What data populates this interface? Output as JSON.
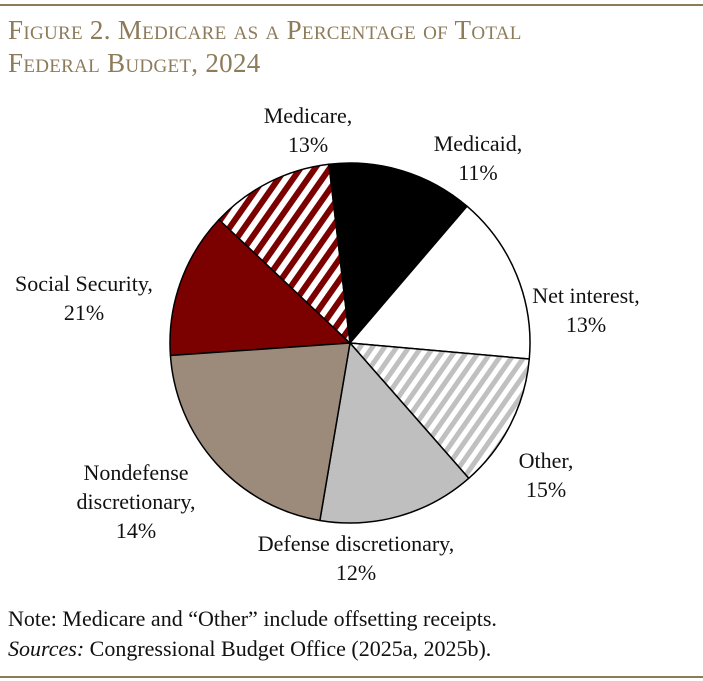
{
  "figure": {
    "title_line1": "Figure 2. Medicare as a Percentage of Total",
    "title_line2": "Federal Budget, 2024"
  },
  "chart_data": {
    "type": "pie",
    "title": "Medicare as a Percentage of Total Federal Budget, 2024",
    "slices": [
      {
        "name": "Medicare",
        "label_lines": [
          "Medicare,",
          "13%"
        ],
        "value": 13,
        "fill": "#7b0000",
        "pattern": "solid"
      },
      {
        "name": "Medicaid",
        "label_lines": [
          "Medicaid,",
          "11%"
        ],
        "value": 11,
        "fill": "#7b0000",
        "pattern": "stripes"
      },
      {
        "name": "Net interest",
        "label_lines": [
          "Net interest,",
          "13%"
        ],
        "value": 13,
        "fill": "#000000",
        "pattern": "solid"
      },
      {
        "name": "Other",
        "label_lines": [
          "Other,",
          "15%"
        ],
        "value": 15,
        "fill": "#ffffff",
        "pattern": "solid"
      },
      {
        "name": "Defense discretionary",
        "label_lines": [
          "Defense discretionary,",
          "12%"
        ],
        "value": 12,
        "fill": "#c0c0c0",
        "pattern": "stripes"
      },
      {
        "name": "Nondefense discretionary",
        "label_lines": [
          "Nondefense",
          "discretionary,",
          "14%"
        ],
        "value": 14,
        "fill": "#bfbfbf",
        "pattern": "solid"
      },
      {
        "name": "Social Security",
        "label_lines": [
          "Social Security,",
          "21%"
        ],
        "value": 21,
        "fill": "#9c8a7b",
        "pattern": "solid"
      }
    ]
  },
  "notes": {
    "note": "Note: Medicare and “Other” include offsetting receipts.",
    "sources_label": "Sources:",
    "sources_text": " Congressional Budget Office (2025a, 2025b)."
  }
}
